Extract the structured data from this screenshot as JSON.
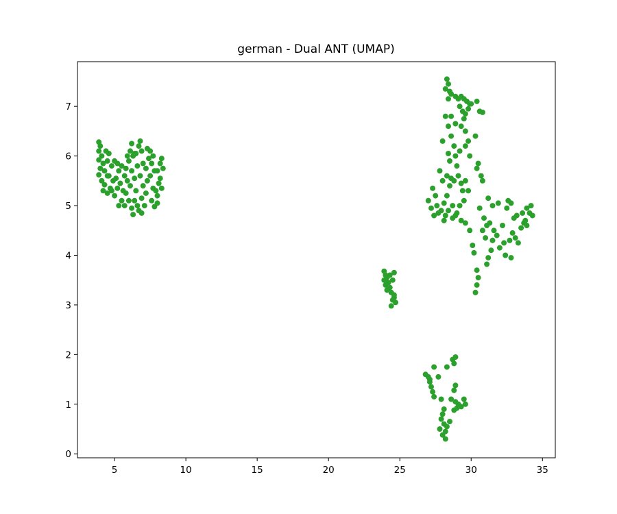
{
  "chart_data": {
    "type": "scatter",
    "title": "german - Dual ANT (UMAP)",
    "xlabel": "",
    "ylabel": "",
    "xlim": [
      2.4,
      35.9
    ],
    "ylim": [
      -0.08,
      7.9
    ],
    "xticks": [
      5,
      10,
      15,
      20,
      25,
      30,
      35
    ],
    "yticks": [
      0,
      1,
      2,
      3,
      4,
      5,
      6,
      7
    ],
    "grid": false,
    "legend": "none",
    "point_color": "#2ca02c",
    "series": [
      {
        "values": [
          [
            3.9,
            6.28
          ],
          [
            4.0,
            6.2
          ],
          [
            3.9,
            6.1
          ],
          [
            4.1,
            6.0
          ],
          [
            3.9,
            5.92
          ],
          [
            4.2,
            5.85
          ],
          [
            4.0,
            5.75
          ],
          [
            4.3,
            5.7
          ],
          [
            3.9,
            5.62
          ],
          [
            4.1,
            5.5
          ],
          [
            4.3,
            5.42
          ],
          [
            4.2,
            5.3
          ],
          [
            4.5,
            5.25
          ],
          [
            4.7,
            5.35
          ],
          [
            4.4,
            6.1
          ],
          [
            4.6,
            6.05
          ],
          [
            4.5,
            5.9
          ],
          [
            4.8,
            5.8
          ],
          [
            4.6,
            5.6
          ],
          [
            4.9,
            5.5
          ],
          [
            4.8,
            5.3
          ],
          [
            5.0,
            5.2
          ],
          [
            5.2,
            5.35
          ],
          [
            5.1,
            5.55
          ],
          [
            5.3,
            5.7
          ],
          [
            5.2,
            5.85
          ],
          [
            5.5,
            5.8
          ],
          [
            5.4,
            5.45
          ],
          [
            5.6,
            5.3
          ],
          [
            5.5,
            5.1
          ],
          [
            5.7,
            5.0
          ],
          [
            5.8,
            5.25
          ],
          [
            5.9,
            5.5
          ],
          [
            5.8,
            5.75
          ],
          [
            5.9,
            6.0
          ],
          [
            6.1,
            6.1
          ],
          [
            6.2,
            6.25
          ],
          [
            6.3,
            6.0
          ],
          [
            6.0,
            5.9
          ],
          [
            6.2,
            5.7
          ],
          [
            6.1,
            5.4
          ],
          [
            6.0,
            5.1
          ],
          [
            6.2,
            4.95
          ],
          [
            6.3,
            4.82
          ],
          [
            6.4,
            5.1
          ],
          [
            6.5,
            5.3
          ],
          [
            6.4,
            5.55
          ],
          [
            6.6,
            5.8
          ],
          [
            6.5,
            6.05
          ],
          [
            6.7,
            6.2
          ],
          [
            6.8,
            6.3
          ],
          [
            6.9,
            6.1
          ],
          [
            7.0,
            5.85
          ],
          [
            6.8,
            5.6
          ],
          [
            7.0,
            5.4
          ],
          [
            6.9,
            5.15
          ],
          [
            6.7,
            4.9
          ],
          [
            6.9,
            4.85
          ],
          [
            7.1,
            5.0
          ],
          [
            7.2,
            5.25
          ],
          [
            7.3,
            5.5
          ],
          [
            7.2,
            5.75
          ],
          [
            7.4,
            5.95
          ],
          [
            7.3,
            6.15
          ],
          [
            7.5,
            6.1
          ],
          [
            7.6,
            5.85
          ],
          [
            7.5,
            5.6
          ],
          [
            7.7,
            5.35
          ],
          [
            7.6,
            5.1
          ],
          [
            7.8,
            4.98
          ],
          [
            8.0,
            5.05
          ],
          [
            7.9,
            5.3
          ],
          [
            8.1,
            5.45
          ],
          [
            8.0,
            5.7
          ],
          [
            8.2,
            5.85
          ],
          [
            8.3,
            5.95
          ],
          [
            8.4,
            5.75
          ],
          [
            8.2,
            5.55
          ],
          [
            8.3,
            5.35
          ],
          [
            8.0,
            5.2
          ],
          [
            7.7,
            6.0
          ],
          [
            6.4,
            6.05
          ],
          [
            5.7,
            5.6
          ],
          [
            5.0,
            5.9
          ],
          [
            4.5,
            5.6
          ],
          [
            5.3,
            5.0
          ],
          [
            6.6,
            5.0
          ],
          [
            7.8,
            5.7
          ],
          [
            23.9,
            3.68
          ],
          [
            24.0,
            3.6
          ],
          [
            24.1,
            3.55
          ],
          [
            23.9,
            3.5
          ],
          [
            24.2,
            3.45
          ],
          [
            24.0,
            3.4
          ],
          [
            24.3,
            3.35
          ],
          [
            24.1,
            3.3
          ],
          [
            24.4,
            3.25
          ],
          [
            24.6,
            3.65
          ],
          [
            24.5,
            3.5
          ],
          [
            24.6,
            3.2
          ],
          [
            24.5,
            3.1
          ],
          [
            24.7,
            3.05
          ],
          [
            24.4,
            2.98
          ],
          [
            24.6,
            3.15
          ],
          [
            24.3,
            3.6
          ],
          [
            27.4,
            1.75
          ],
          [
            26.8,
            1.6
          ],
          [
            27.0,
            1.55
          ],
          [
            27.1,
            1.45
          ],
          [
            27.2,
            1.35
          ],
          [
            27.3,
            1.25
          ],
          [
            27.4,
            1.15
          ],
          [
            27.7,
            1.55
          ],
          [
            27.9,
            1.1
          ],
          [
            28.1,
            0.9
          ],
          [
            28.0,
            0.8
          ],
          [
            27.9,
            0.7
          ],
          [
            28.1,
            0.6
          ],
          [
            27.8,
            0.5
          ],
          [
            28.2,
            0.45
          ],
          [
            28.0,
            0.38
          ],
          [
            28.2,
            0.3
          ],
          [
            28.3,
            1.75
          ],
          [
            28.7,
            1.9
          ],
          [
            28.9,
            1.95
          ],
          [
            28.8,
            1.82
          ],
          [
            28.9,
            1.38
          ],
          [
            28.8,
            1.28
          ],
          [
            28.6,
            1.1
          ],
          [
            28.9,
            1.05
          ],
          [
            29.1,
            1.0
          ],
          [
            29.3,
            0.95
          ],
          [
            29.0,
            0.92
          ],
          [
            28.8,
            0.88
          ],
          [
            29.5,
            1.1
          ],
          [
            29.6,
            1.0
          ],
          [
            28.5,
            0.65
          ],
          [
            28.3,
            0.55
          ],
          [
            27.1,
            1.5
          ],
          [
            28.3,
            7.55
          ],
          [
            28.4,
            7.45
          ],
          [
            28.2,
            7.35
          ],
          [
            28.5,
            7.3
          ],
          [
            28.4,
            7.15
          ],
          [
            28.6,
            7.25
          ],
          [
            28.9,
            7.2
          ],
          [
            29.1,
            7.15
          ],
          [
            29.3,
            7.2
          ],
          [
            29.5,
            7.15
          ],
          [
            29.7,
            7.1
          ],
          [
            29.9,
            7.05
          ],
          [
            29.2,
            7.0
          ],
          [
            29.4,
            6.9
          ],
          [
            29.6,
            6.85
          ],
          [
            29.8,
            6.95
          ],
          [
            30.0,
            7.05
          ],
          [
            30.4,
            7.1
          ],
          [
            30.6,
            6.9
          ],
          [
            30.8,
            6.88
          ],
          [
            29.5,
            6.75
          ],
          [
            29.3,
            6.6
          ],
          [
            29.6,
            6.5
          ],
          [
            28.6,
            6.8
          ],
          [
            28.2,
            6.8
          ],
          [
            28.9,
            6.65
          ],
          [
            28.4,
            6.6
          ],
          [
            28.8,
            6.2
          ],
          [
            28.6,
            6.4
          ],
          [
            28.4,
            6.05
          ],
          [
            28.9,
            6.0
          ],
          [
            29.2,
            6.1
          ],
          [
            29.6,
            6.2
          ],
          [
            29.8,
            6.3
          ],
          [
            30.3,
            6.4
          ],
          [
            29.0,
            5.8
          ],
          [
            28.5,
            5.9
          ],
          [
            28.3,
            5.6
          ],
          [
            28.0,
            5.5
          ],
          [
            28.5,
            5.4
          ],
          [
            28.3,
            5.2
          ],
          [
            28.1,
            5.05
          ],
          [
            28.4,
            4.9
          ],
          [
            28.2,
            4.8
          ],
          [
            27.9,
            4.9
          ],
          [
            27.7,
            4.85
          ],
          [
            27.6,
            5.0
          ],
          [
            27.5,
            5.2
          ],
          [
            27.3,
            5.35
          ],
          [
            27.0,
            5.1
          ],
          [
            27.2,
            4.95
          ],
          [
            27.4,
            4.8
          ],
          [
            28.6,
            5.55
          ],
          [
            28.8,
            5.5
          ],
          [
            29.1,
            5.6
          ],
          [
            29.3,
            5.45
          ],
          [
            29.6,
            5.5
          ],
          [
            29.8,
            5.3
          ],
          [
            29.5,
            5.1
          ],
          [
            29.2,
            5.0
          ],
          [
            29.0,
            4.85
          ],
          [
            28.7,
            4.75
          ],
          [
            29.3,
            4.7
          ],
          [
            29.6,
            4.65
          ],
          [
            29.9,
            4.5
          ],
          [
            30.1,
            4.2
          ],
          [
            30.2,
            4.05
          ],
          [
            30.4,
            3.7
          ],
          [
            30.5,
            3.55
          ],
          [
            30.4,
            3.4
          ],
          [
            30.3,
            3.25
          ],
          [
            30.6,
            4.95
          ],
          [
            30.9,
            4.75
          ],
          [
            31.1,
            4.6
          ],
          [
            31.0,
            4.35
          ],
          [
            30.7,
            5.6
          ],
          [
            30.8,
            5.5
          ],
          [
            30.5,
            5.85
          ],
          [
            30.4,
            5.75
          ],
          [
            31.2,
            5.15
          ],
          [
            31.5,
            5.0
          ],
          [
            31.3,
            4.65
          ],
          [
            31.6,
            4.5
          ],
          [
            31.8,
            4.4
          ],
          [
            31.5,
            4.3
          ],
          [
            31.4,
            4.1
          ],
          [
            31.2,
            3.95
          ],
          [
            31.1,
            3.82
          ],
          [
            32.0,
            4.15
          ],
          [
            32.4,
            4.0
          ],
          [
            32.7,
            4.3
          ],
          [
            32.9,
            4.45
          ],
          [
            33.1,
            4.35
          ],
          [
            33.3,
            4.25
          ],
          [
            33.5,
            4.55
          ],
          [
            33.7,
            4.65
          ],
          [
            33.9,
            4.6
          ],
          [
            33.6,
            4.85
          ],
          [
            33.9,
            4.95
          ],
          [
            34.2,
            5.0
          ],
          [
            34.1,
            4.85
          ],
          [
            34.3,
            4.8
          ],
          [
            33.8,
            4.7
          ],
          [
            33.2,
            4.8
          ],
          [
            32.8,
            5.05
          ],
          [
            32.6,
            5.1
          ],
          [
            33.0,
            4.75
          ],
          [
            32.5,
            4.95
          ],
          [
            31.9,
            5.05
          ],
          [
            32.2,
            4.6
          ],
          [
            32.3,
            4.25
          ],
          [
            32.8,
            3.95
          ],
          [
            27.8,
            5.7
          ],
          [
            28.0,
            6.3
          ],
          [
            28.7,
            5.0
          ],
          [
            29.4,
            5.3
          ],
          [
            29.9,
            6.0
          ],
          [
            28.9,
            4.8
          ],
          [
            28.1,
            4.7
          ],
          [
            30.8,
            4.5
          ]
        ]
      }
    ]
  }
}
